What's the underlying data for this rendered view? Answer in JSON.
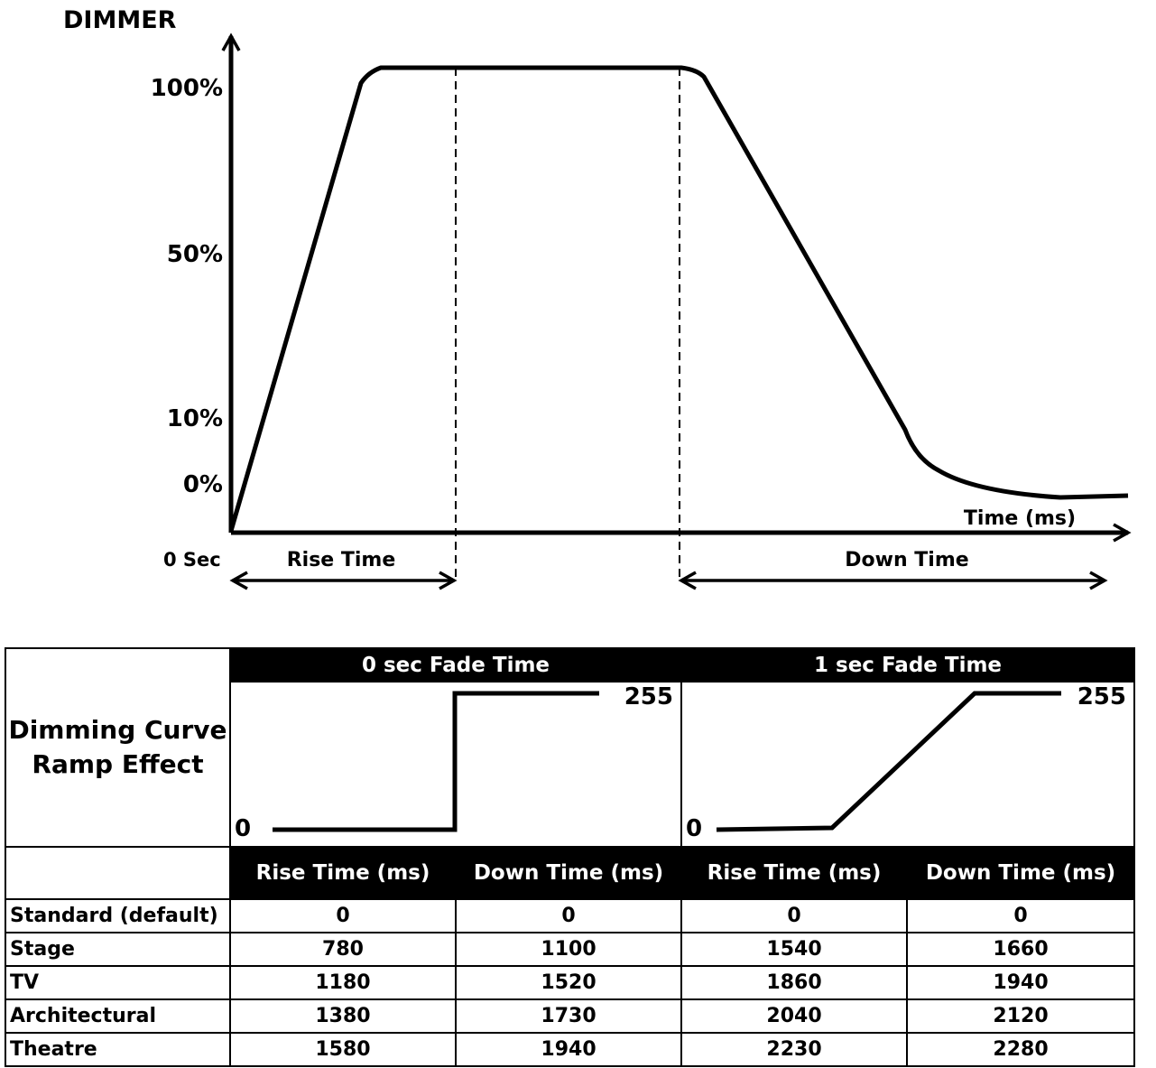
{
  "top_diagram": {
    "y_axis_label": "DIMMER",
    "y_ticks": [
      "100%",
      "50%",
      "10%",
      "0%"
    ],
    "x_axis_label": "Time (ms)",
    "origin_label": "0 Sec",
    "rise_label": "Rise Time",
    "down_label": "Down Time"
  },
  "table": {
    "corner_label_line1": "Dimming Curve",
    "corner_label_line2": "Ramp Effect",
    "fade_groups": [
      {
        "title": "0 sec Fade Time",
        "low_label": "0",
        "high_label": "255"
      },
      {
        "title": "1 sec Fade Time",
        "low_label": "0",
        "high_label": "255"
      }
    ],
    "column_headers": [
      "Rise Time (ms)",
      "Down Time (ms)",
      "Rise Time (ms)",
      "Down Time (ms)"
    ],
    "rows": [
      {
        "label": "Standard (default)",
        "values": [
          "0",
          "0",
          "0",
          "0"
        ]
      },
      {
        "label": "Stage",
        "values": [
          "780",
          "1100",
          "1540",
          "1660"
        ]
      },
      {
        "label": "TV",
        "values": [
          "1180",
          "1520",
          "1860",
          "1940"
        ]
      },
      {
        "label": "Architectural",
        "values": [
          "1380",
          "1730",
          "2040",
          "2120"
        ]
      },
      {
        "label": "Theatre",
        "values": [
          "1580",
          "1940",
          "2230",
          "2280"
        ]
      }
    ]
  }
}
